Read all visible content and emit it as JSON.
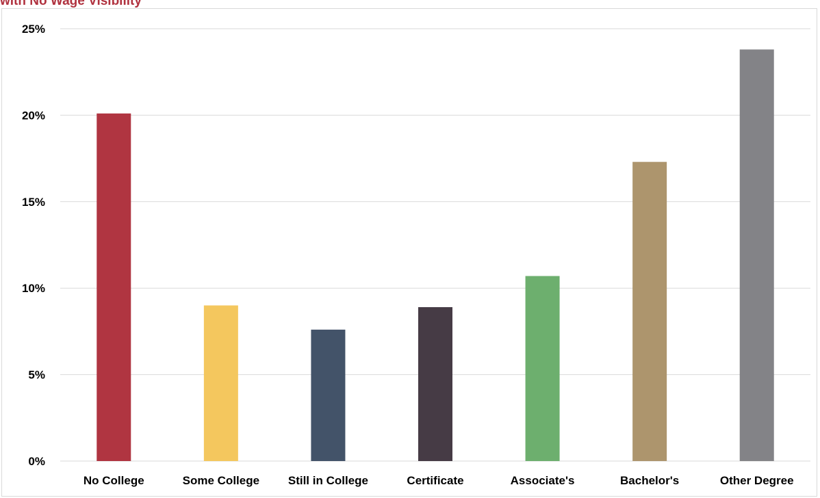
{
  "chart_data": {
    "type": "bar",
    "title": "with No Wage Visibility",
    "categories": [
      "No College",
      "Some College",
      "Still in  College",
      "Certificate",
      "Associate's",
      "Bachelor's",
      "Other Degree"
    ],
    "values": [
      20.1,
      9.0,
      7.6,
      8.9,
      10.7,
      17.3,
      23.8
    ],
    "colors": [
      "#b03541",
      "#f4c75e",
      "#435369",
      "#463b45",
      "#6daf6e",
      "#ad956d",
      "#838387"
    ],
    "ylim": [
      0,
      25
    ],
    "yticks": [
      0,
      5,
      10,
      15,
      20,
      25
    ],
    "ytick_labels": [
      "0%",
      "5%",
      "10%",
      "15%",
      "20%",
      "25%"
    ],
    "grid": true,
    "legend": "none"
  }
}
